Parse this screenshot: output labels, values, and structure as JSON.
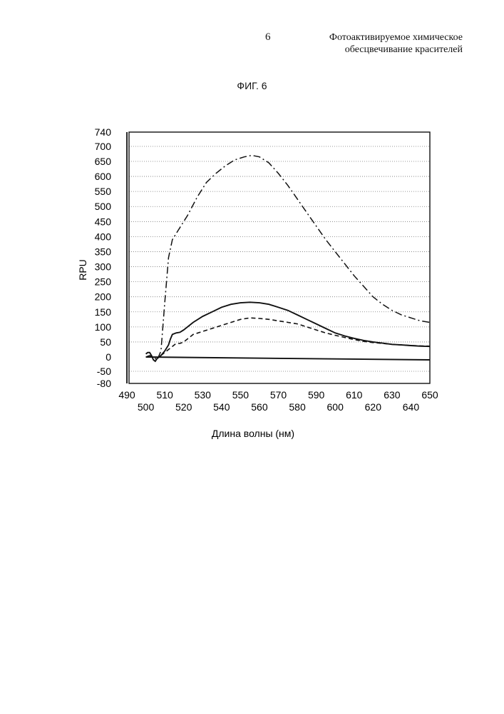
{
  "page": {
    "number": "6",
    "title_lines": [
      "Фотоактивируемое химическое",
      "обесцвечивание красителей"
    ]
  },
  "figure": {
    "label": "ФИГ. 6"
  },
  "chart_data": {
    "type": "line",
    "title": "",
    "xlabel": "Длина волны (нм)",
    "ylabel": "RPU",
    "xlim": [
      490,
      650
    ],
    "ylim": [
      -80,
      740
    ],
    "x_ticks_upper": [
      "490",
      "510",
      "530",
      "550",
      "570",
      "590",
      "610",
      "630",
      "650"
    ],
    "x_ticks_lower": [
      "500",
      "520",
      "540",
      "560",
      "580",
      "600",
      "620",
      "640"
    ],
    "y_ticks": [
      "740",
      "700",
      "650",
      "600",
      "550",
      "500",
      "450",
      "400",
      "350",
      "300",
      "250",
      "200",
      "150",
      "100",
      "50",
      "0",
      "-50",
      "-80"
    ],
    "grid": true,
    "series": [
      {
        "style": "dash-dot",
        "points": [
          [
            500,
            0
          ],
          [
            502,
            5
          ],
          [
            504,
            0
          ],
          [
            506,
            -10
          ],
          [
            508,
            20
          ],
          [
            510,
            180
          ],
          [
            512,
            330
          ],
          [
            514,
            390
          ],
          [
            517,
            420
          ],
          [
            522,
            470
          ],
          [
            527,
            530
          ],
          [
            532,
            580
          ],
          [
            537,
            610
          ],
          [
            542,
            635
          ],
          [
            547,
            655
          ],
          [
            552,
            665
          ],
          [
            556,
            670
          ],
          [
            560,
            665
          ],
          [
            565,
            645
          ],
          [
            570,
            610
          ],
          [
            575,
            570
          ],
          [
            580,
            525
          ],
          [
            585,
            480
          ],
          [
            590,
            435
          ],
          [
            595,
            390
          ],
          [
            600,
            350
          ],
          [
            605,
            310
          ],
          [
            610,
            270
          ],
          [
            615,
            235
          ],
          [
            620,
            200
          ],
          [
            625,
            175
          ],
          [
            630,
            155
          ],
          [
            635,
            140
          ],
          [
            640,
            130
          ],
          [
            645,
            120
          ],
          [
            650,
            115
          ]
        ]
      },
      {
        "style": "solid",
        "points": [
          [
            500,
            10
          ],
          [
            501,
            15
          ],
          [
            502,
            15
          ],
          [
            503,
            5
          ],
          [
            504,
            -10
          ],
          [
            505,
            -15
          ],
          [
            506,
            -5
          ],
          [
            508,
            5
          ],
          [
            510,
            20
          ],
          [
            512,
            40
          ],
          [
            513,
            60
          ],
          [
            514,
            75
          ],
          [
            516,
            80
          ],
          [
            518,
            82
          ],
          [
            520,
            90
          ],
          [
            525,
            115
          ],
          [
            530,
            135
          ],
          [
            535,
            150
          ],
          [
            540,
            165
          ],
          [
            545,
            175
          ],
          [
            550,
            180
          ],
          [
            555,
            182
          ],
          [
            560,
            180
          ],
          [
            565,
            175
          ],
          [
            570,
            165
          ],
          [
            575,
            155
          ],
          [
            580,
            140
          ],
          [
            585,
            125
          ],
          [
            590,
            110
          ],
          [
            595,
            95
          ],
          [
            600,
            80
          ],
          [
            605,
            70
          ],
          [
            610,
            62
          ],
          [
            615,
            55
          ],
          [
            620,
            50
          ],
          [
            625,
            46
          ],
          [
            630,
            42
          ],
          [
            635,
            40
          ],
          [
            640,
            38
          ],
          [
            645,
            36
          ],
          [
            650,
            35
          ]
        ]
      },
      {
        "style": "dashed",
        "points": [
          [
            508,
            5
          ],
          [
            510,
            15
          ],
          [
            512,
            25
          ],
          [
            514,
            35
          ],
          [
            516,
            45
          ],
          [
            518,
            45
          ],
          [
            520,
            50
          ],
          [
            522,
            60
          ],
          [
            525,
            75
          ],
          [
            530,
            85
          ],
          [
            535,
            95
          ],
          [
            540,
            105
          ],
          [
            545,
            115
          ],
          [
            550,
            125
          ],
          [
            555,
            130
          ],
          [
            560,
            128
          ],
          [
            565,
            125
          ],
          [
            570,
            120
          ],
          [
            575,
            115
          ],
          [
            580,
            110
          ],
          [
            585,
            100
          ],
          [
            590,
            90
          ],
          [
            595,
            80
          ],
          [
            600,
            72
          ],
          [
            605,
            65
          ],
          [
            610,
            58
          ],
          [
            615,
            52
          ],
          [
            620,
            48
          ],
          [
            625,
            45
          ],
          [
            630,
            42
          ],
          [
            635,
            40
          ],
          [
            640,
            38
          ],
          [
            645,
            37
          ],
          [
            650,
            36
          ]
        ]
      },
      {
        "style": "solid",
        "points": [
          [
            500,
            0
          ],
          [
            650,
            -10
          ]
        ]
      }
    ]
  }
}
